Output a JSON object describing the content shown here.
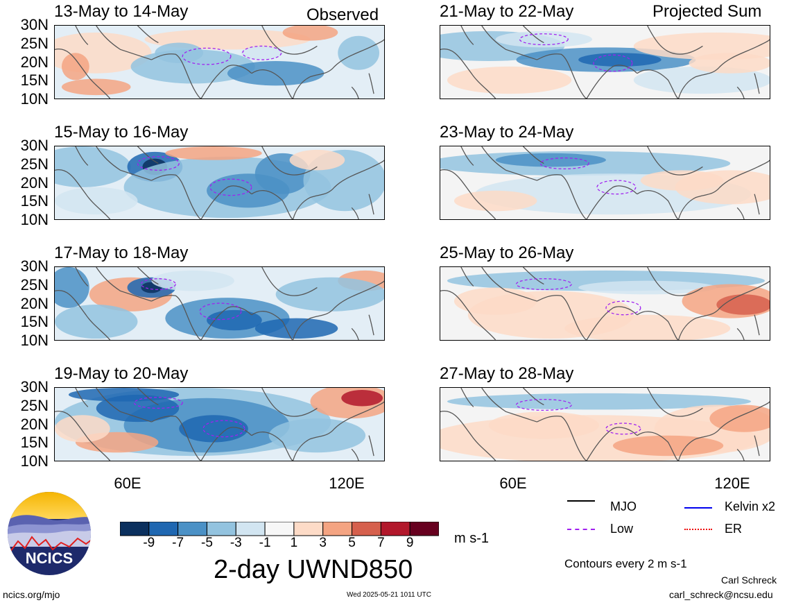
{
  "figure": {
    "main_title": "2-day UWND850",
    "units": "m s-1",
    "contours_note": "Contours every 2 m s-1",
    "author": "Carl Schreck",
    "email": "carl_schreck@ncsu.edu",
    "url": "ncics.org/mjo",
    "timestamp": "Wed 2025-05-21 1011 UTC",
    "logo_text": "NCICS"
  },
  "columns": {
    "left_label": "Observed",
    "right_label": "Projected Sum"
  },
  "panels": [
    {
      "id": "p1",
      "title": "13-May to 14-May",
      "type": "observed",
      "pattern": "obs1"
    },
    {
      "id": "p2",
      "title": "21-May to 22-May",
      "type": "projected",
      "pattern": "proj1"
    },
    {
      "id": "p3",
      "title": "15-May to 16-May",
      "type": "observed",
      "pattern": "obs2"
    },
    {
      "id": "p4",
      "title": "23-May to 24-May",
      "type": "projected",
      "pattern": "proj2"
    },
    {
      "id": "p5",
      "title": "17-May to 18-May",
      "type": "observed",
      "pattern": "obs3"
    },
    {
      "id": "p6",
      "title": "25-May to 26-May",
      "type": "projected",
      "pattern": "proj3"
    },
    {
      "id": "p7",
      "title": "19-May to 20-May",
      "type": "observed",
      "pattern": "obs4"
    },
    {
      "id": "p8",
      "title": "27-May to 28-May",
      "type": "projected",
      "pattern": "proj4"
    }
  ],
  "lat_labels": [
    "30N",
    "25N",
    "20N",
    "15N",
    "10N"
  ],
  "lon_labels": [
    "60E",
    "120E"
  ],
  "colorbar": {
    "colors": [
      "#0b305e",
      "#1f67b1",
      "#4b91c6",
      "#93c3df",
      "#d2e5f1",
      "#f7f7f7",
      "#fddbc7",
      "#f4a482",
      "#d6604d",
      "#b2182b",
      "#67001f"
    ],
    "labels": [
      "-9",
      "-7",
      "-5",
      "-3",
      "-1",
      "1",
      "3",
      "5",
      "7",
      "9"
    ]
  },
  "legend": [
    {
      "name": "MJO",
      "color": "#000000",
      "style": "solid"
    },
    {
      "name": "Kelvin x2",
      "color": "#0000ee",
      "style": "solid"
    },
    {
      "name": "Low",
      "color": "#a020f0",
      "style": "dashed"
    },
    {
      "name": "ER",
      "color": "#ee0000",
      "style": "dotted"
    }
  ]
}
